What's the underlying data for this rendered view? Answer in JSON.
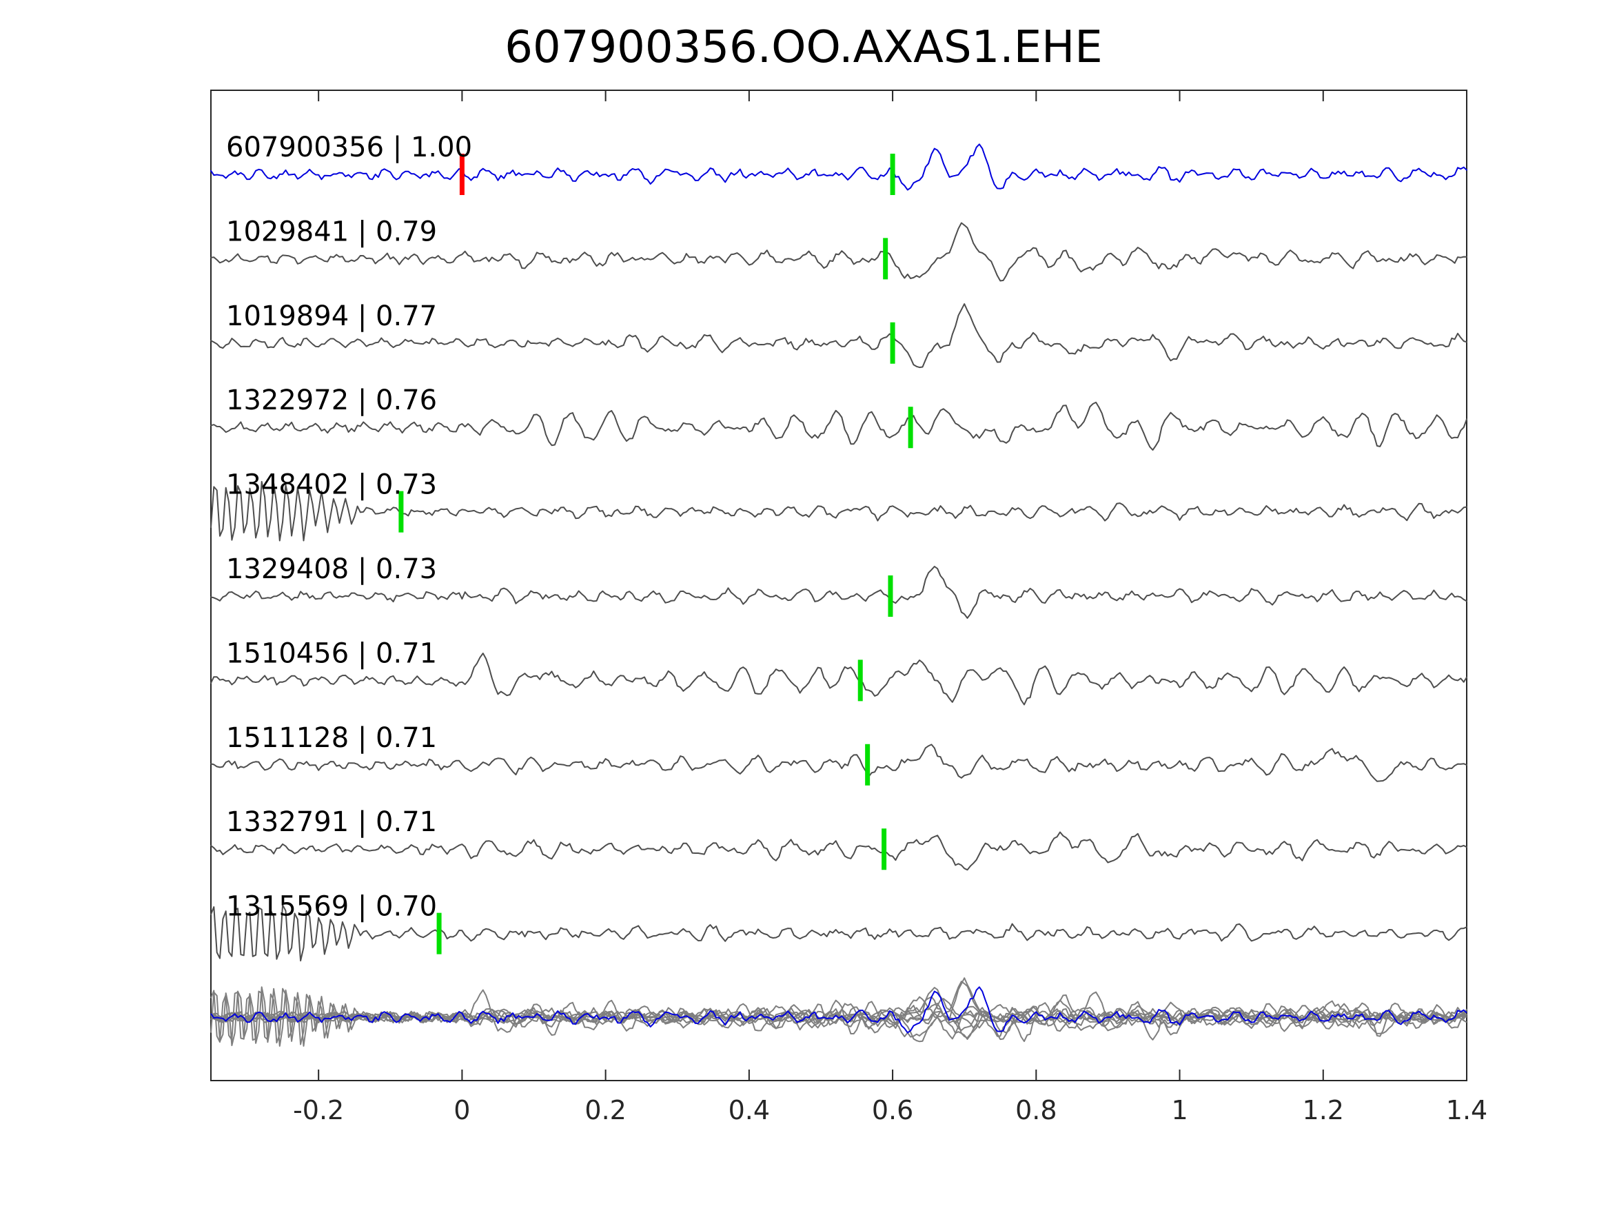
{
  "chart_data": {
    "type": "line",
    "title": "607900356.OO.AXAS1.EHE",
    "xlabel": "",
    "ylabel": "",
    "xlim": [
      -0.35,
      1.4
    ],
    "xticks": [
      -0.2,
      0,
      0.2,
      0.4,
      0.6,
      0.8,
      1,
      1.2,
      1.4
    ],
    "xtick_labels": [
      "-0.2",
      "0",
      "0.2",
      "0.4",
      "0.6",
      "0.8",
      "1",
      "1.2",
      "1.4"
    ],
    "grid": false,
    "colors": {
      "template_trace": "#0000dd",
      "matched_trace": "#4d4d4d",
      "overlay_trace": "#7f7f7f",
      "pick_marker": "#00e000",
      "origin_marker": "#ff0000",
      "axis": "#262626"
    },
    "origin_marker_x": 0.0,
    "series": [
      {
        "event_id": "607900356",
        "label": "607900356 | 1.00",
        "correlation": 1.0,
        "pick_time": 0.6,
        "template": true
      },
      {
        "event_id": "1029841",
        "label": "1029841 | 0.79",
        "correlation": 0.79,
        "pick_time": 0.59
      },
      {
        "event_id": "1019894",
        "label": "1019894 | 0.77",
        "correlation": 0.77,
        "pick_time": 0.6
      },
      {
        "event_id": "1322972",
        "label": "1322972 | 0.76",
        "correlation": 0.76,
        "pick_time": 0.625
      },
      {
        "event_id": "1348402",
        "label": "1348402 | 0.73",
        "correlation": 0.73,
        "pick_time": -0.085
      },
      {
        "event_id": "1329408",
        "label": "1329408 | 0.73",
        "correlation": 0.73,
        "pick_time": 0.597
      },
      {
        "event_id": "1510456",
        "label": "1510456 | 0.71",
        "correlation": 0.71,
        "pick_time": 0.555
      },
      {
        "event_id": "1511128",
        "label": "1511128 | 0.71",
        "correlation": 0.71,
        "pick_time": 0.565
      },
      {
        "event_id": "1332791",
        "label": "1332791 | 0.71",
        "correlation": 0.71,
        "pick_time": 0.588
      },
      {
        "event_id": "1315569",
        "label": "1315569 | 0.70",
        "correlation": 0.7,
        "pick_time": -0.032
      }
    ]
  }
}
